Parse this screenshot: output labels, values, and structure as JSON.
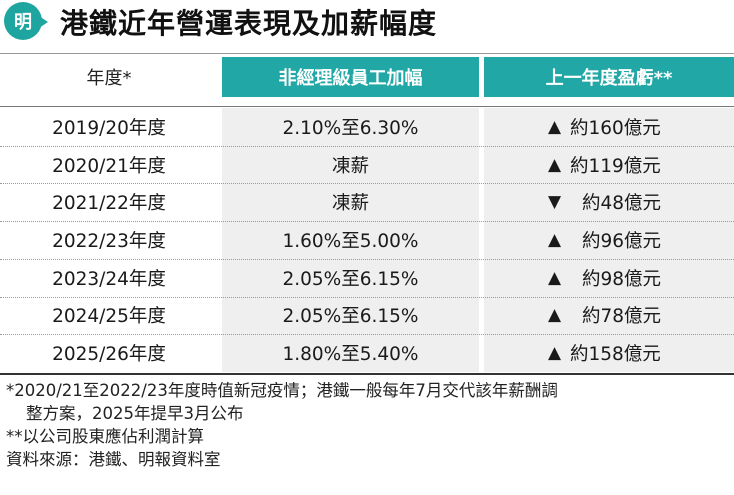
{
  "header": {
    "logo_char": "明",
    "title": "港鐵近年營運表現及加薪幅度"
  },
  "table": {
    "columns": {
      "year": "年度*",
      "raise": "非經理級員工加幅",
      "profit": "上一年度盈虧**"
    },
    "rows": [
      {
        "year": "2019/20年度",
        "raise": "2.10%至6.30%",
        "profit_symbol": "▲",
        "profit": "約160億元"
      },
      {
        "year": "2020/21年度",
        "raise": "凍薪",
        "profit_symbol": "▲",
        "profit": "約119億元"
      },
      {
        "year": "2021/22年度",
        "raise": "凍薪",
        "profit_symbol": "▼",
        "profit": "約48億元"
      },
      {
        "year": "2022/23年度",
        "raise": "1.60%至5.00%",
        "profit_symbol": "▲",
        "profit": "約96億元"
      },
      {
        "year": "2023/24年度",
        "raise": "2.05%至6.15%",
        "profit_symbol": "▲",
        "profit": "約98億元"
      },
      {
        "year": "2024/25年度",
        "raise": "2.05%至6.15%",
        "profit_symbol": "▲",
        "profit": "約78億元"
      },
      {
        "year": "2025/26年度",
        "raise": "1.80%至5.40%",
        "profit_symbol": "▲",
        "profit": "約158億元"
      }
    ]
  },
  "notes": {
    "line1": "*2020/21至2022/23年度時值新冠疫情；港鐵一般每年7月交代該年薪酬調",
    "line2": "整方案，2025年提早3月公布",
    "line3": "**以公司股東應佔利潤計算",
    "line4": "資料來源：港鐵、明報資料室"
  },
  "colors": {
    "accent": "#21a7a5",
    "logo": "#1fa5a0",
    "cell_bg": "#efefef"
  }
}
